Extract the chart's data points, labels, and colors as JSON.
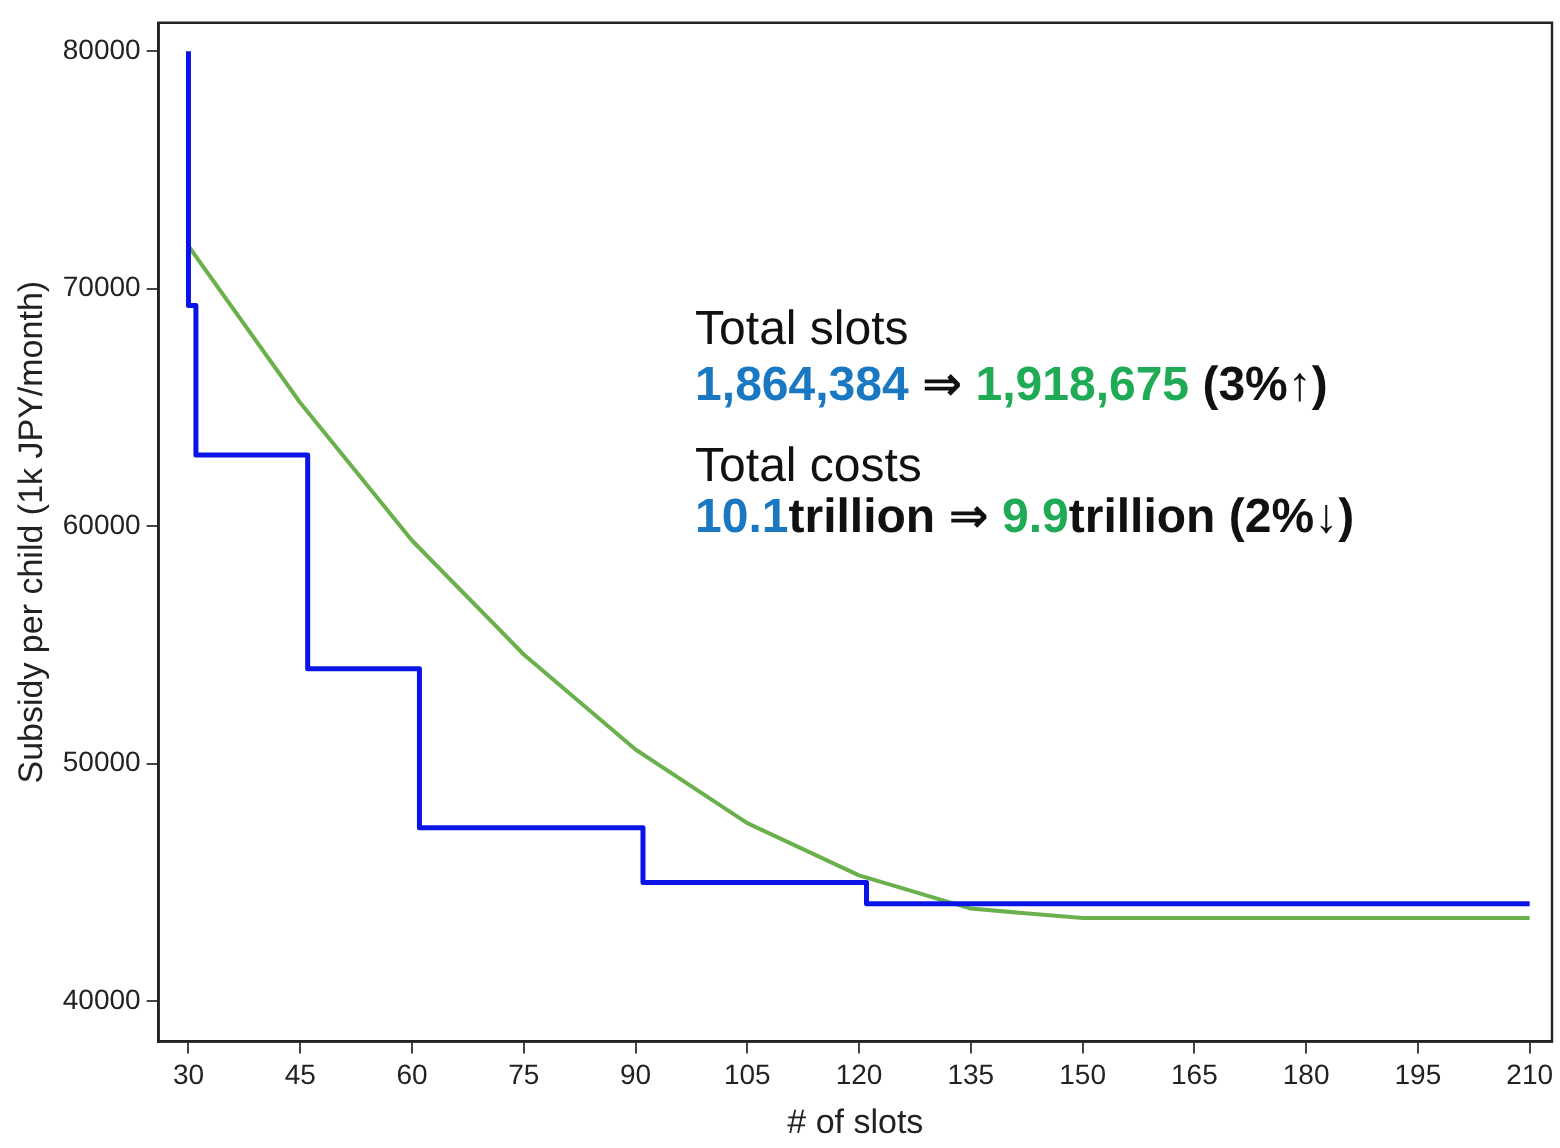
{
  "chart_data": {
    "type": "line",
    "xlabel": "# of slots",
    "ylabel": "Subsidy per child (1k JPY/month)",
    "series": [
      {
        "type": "step",
        "color": "#0a14e6",
        "x": [
          30,
          31,
          46,
          61,
          91,
          121,
          151,
          210
        ],
        "values": [
          80000,
          69300,
          63000,
          54000,
          47300,
          45000,
          44100,
          44100
        ]
      },
      {
        "type": "line",
        "color": "#6ab04c",
        "x": [
          30,
          45,
          60,
          75,
          90,
          105,
          120,
          135,
          150,
          210
        ],
        "values": [
          71800,
          65200,
          59400,
          54600,
          50600,
          47500,
          45300,
          43900,
          43500,
          43500
        ]
      }
    ],
    "xlim": [
      26,
      213
    ],
    "xticks": [
      30,
      45,
      60,
      75,
      90,
      105,
      120,
      135,
      150,
      165,
      180,
      195,
      210
    ],
    "ylim": [
      38300,
      81200
    ],
    "yticks": [
      40000,
      50000,
      60000,
      70000,
      80000
    ],
    "grid": false,
    "legend": false,
    "marker": "none",
    "annotations": [
      "Total slots",
      "1,864,384 ⇒ 1,918,675 (3%↑)",
      "Total costs",
      "10.1trillion ⇒ 9.9trillion (2%↓)"
    ]
  }
}
